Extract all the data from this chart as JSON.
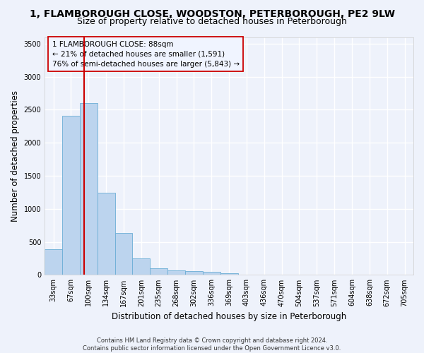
{
  "title": "1, FLAMBOROUGH CLOSE, WOODSTON, PETERBOROUGH, PE2 9LW",
  "subtitle": "Size of property relative to detached houses in Peterborough",
  "xlabel": "Distribution of detached houses by size in Peterborough",
  "ylabel": "Number of detached properties",
  "categories": [
    "33sqm",
    "67sqm",
    "100sqm",
    "134sqm",
    "167sqm",
    "201sqm",
    "235sqm",
    "268sqm",
    "302sqm",
    "336sqm",
    "369sqm",
    "403sqm",
    "436sqm",
    "470sqm",
    "504sqm",
    "537sqm",
    "571sqm",
    "604sqm",
    "638sqm",
    "672sqm",
    "705sqm"
  ],
  "values": [
    390,
    2410,
    2600,
    1240,
    635,
    255,
    100,
    65,
    60,
    45,
    30,
    0,
    0,
    0,
    0,
    0,
    0,
    0,
    0,
    0,
    0
  ],
  "bar_color": "#bcd4ee",
  "bar_edgecolor": "#6baed6",
  "vline_color": "#cc0000",
  "vline_x": 1.73,
  "annotation_text": "1 FLAMBOROUGH CLOSE: 88sqm\n← 21% of detached houses are smaller (1,591)\n76% of semi-detached houses are larger (5,843) →",
  "annotation_box_edgecolor": "#cc0000",
  "annotation_box_facecolor": "#f0f4ff",
  "ylim": [
    0,
    3600
  ],
  "yticks": [
    0,
    500,
    1000,
    1500,
    2000,
    2500,
    3000,
    3500
  ],
  "footer": "Contains HM Land Registry data © Crown copyright and database right 2024.\nContains public sector information licensed under the Open Government Licence v3.0.",
  "bg_color": "#eef2fb",
  "grid_color": "#ffffff",
  "title_fontsize": 10,
  "subtitle_fontsize": 9,
  "tick_fontsize": 7,
  "ylabel_fontsize": 8.5,
  "xlabel_fontsize": 8.5,
  "annotation_fontsize": 7.5,
  "footer_fontsize": 6
}
